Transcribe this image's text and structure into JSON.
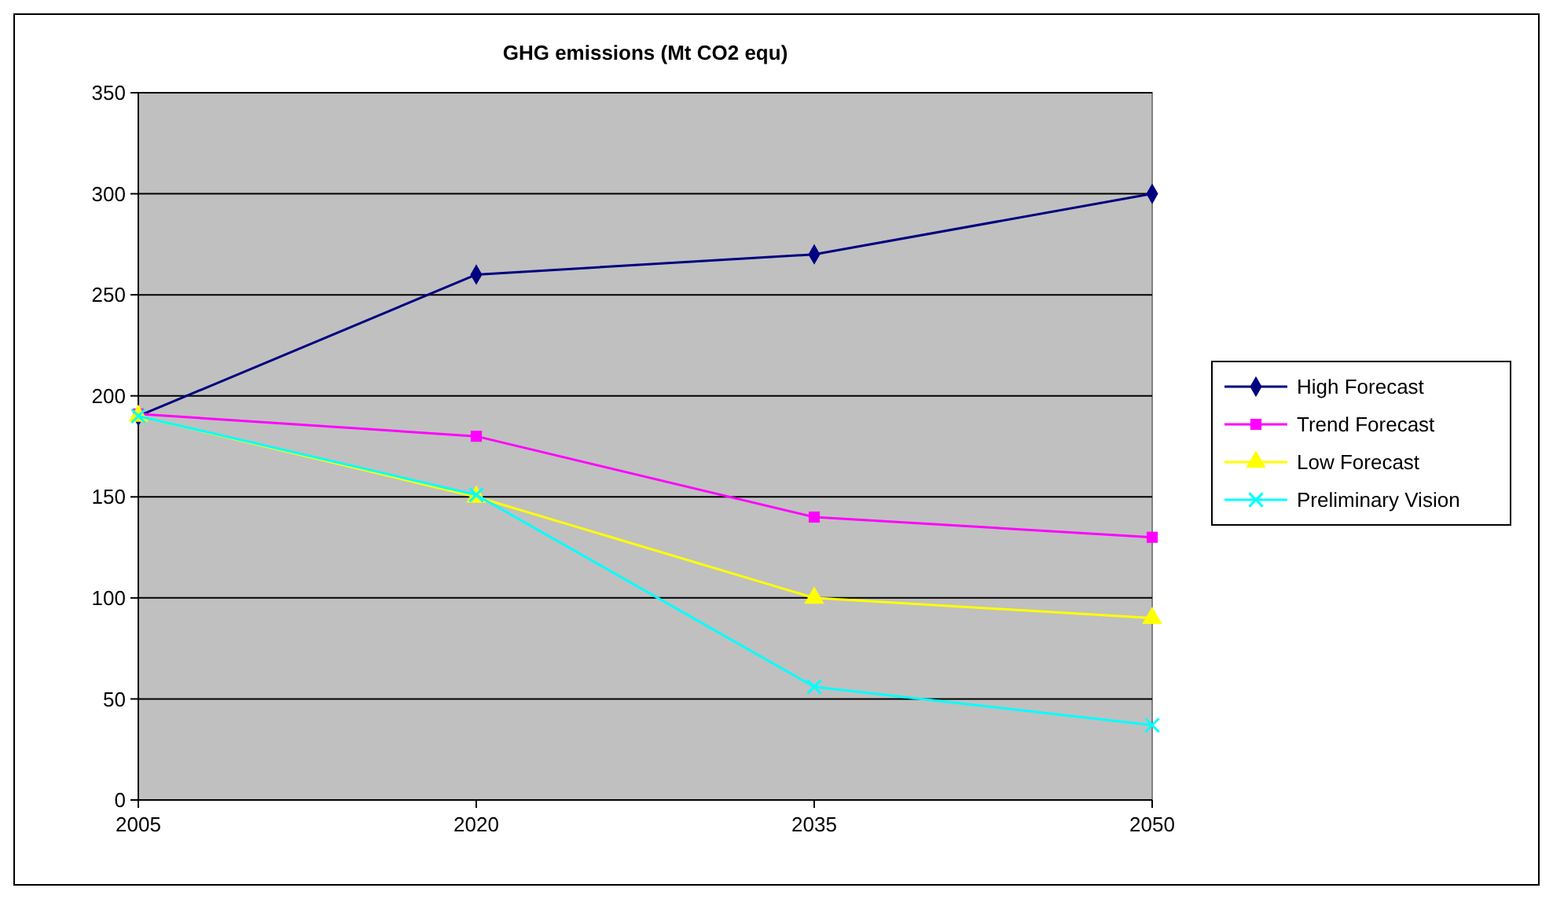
{
  "chart_data": {
    "type": "line",
    "title": "GHG emissions (Mt CO2 equ)",
    "categories": [
      "2005",
      "2020",
      "2035",
      "2050"
    ],
    "series": [
      {
        "name": "High Forecast",
        "color": "#000080",
        "marker": "diamond",
        "values": [
          190,
          260,
          270,
          300
        ]
      },
      {
        "name": "Trend Forecast",
        "color": "#ff00ff",
        "marker": "square",
        "values": [
          191,
          180,
          140,
          130
        ]
      },
      {
        "name": "Low Forecast",
        "color": "#ffff00",
        "marker": "triangle",
        "values": [
          190,
          150,
          100,
          90
        ]
      },
      {
        "name": "Preliminary Vision",
        "color": "#00ffff",
        "marker": "cross",
        "values": [
          190,
          151,
          56,
          37
        ]
      }
    ],
    "ylim": [
      0,
      350
    ],
    "yticks": [
      0,
      50,
      100,
      150,
      200,
      250,
      300,
      350
    ],
    "grid": "y",
    "legend": "right"
  }
}
